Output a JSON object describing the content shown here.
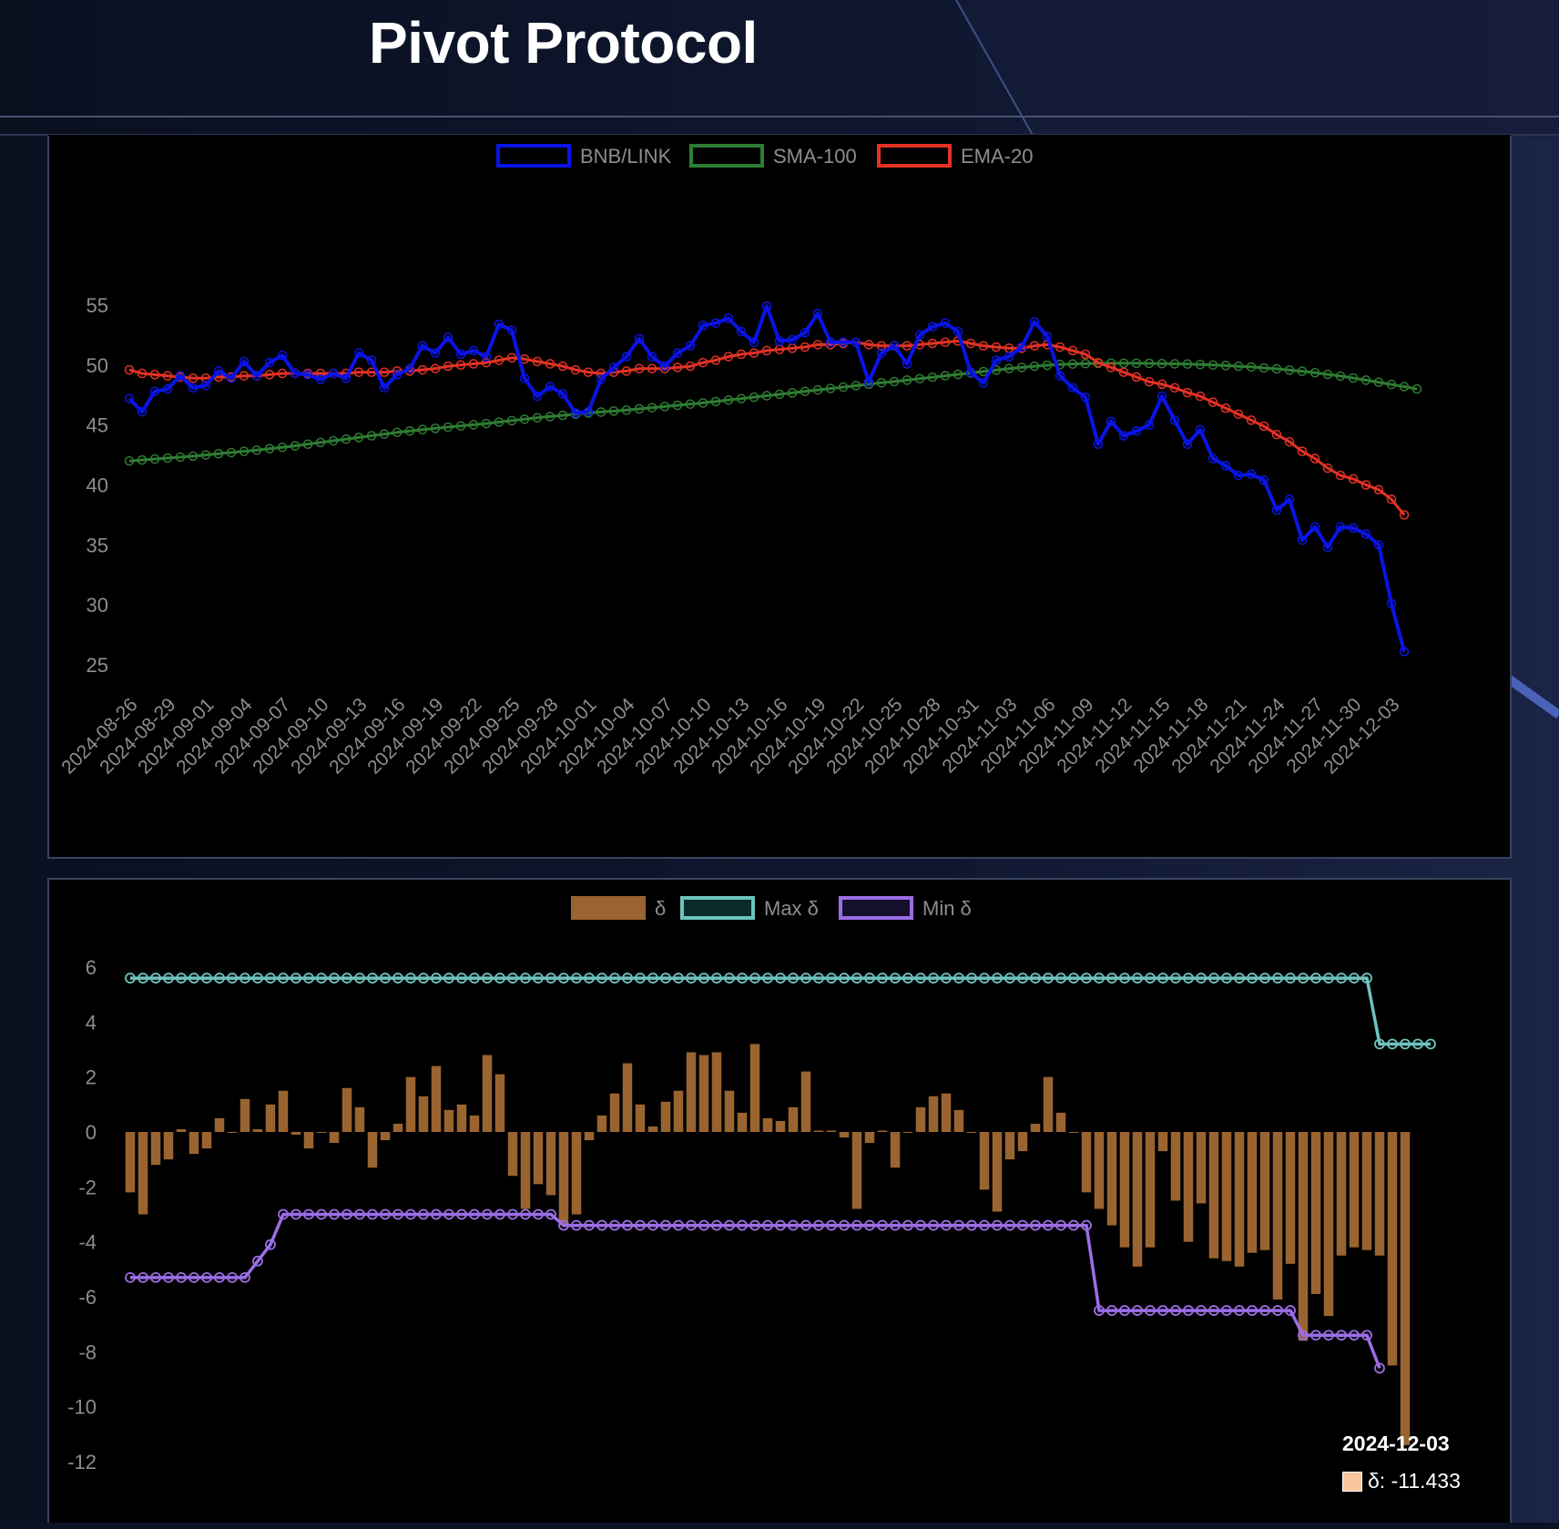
{
  "page": {
    "title": "Pivot Protocol"
  },
  "colors": {
    "price": "#0a14e6",
    "sma": "#2e7d32",
    "ema": "#e53224",
    "delta": "#9a6430",
    "max": "#6ec3bd",
    "min": "#9b6ee6",
    "axis_text": "#8d8d8d"
  },
  "tooltip": {
    "date": "2024-12-03",
    "label": "δ: -11.433"
  },
  "chart_data": [
    {
      "type": "line",
      "legend": [
        "BNB/LINK",
        "SMA-100",
        "EMA-20"
      ],
      "legend_position": "top",
      "ylim": [
        25,
        55
      ],
      "yticks": [
        55,
        50,
        45,
        40,
        35,
        30,
        25
      ],
      "xtick_labels": [
        "2024-08-26",
        "2024-08-29",
        "2024-09-01",
        "2024-09-04",
        "2024-09-07",
        "2024-09-10",
        "2024-09-13",
        "2024-09-16",
        "2024-09-19",
        "2024-09-22",
        "2024-09-25",
        "2024-09-28",
        "2024-10-01",
        "2024-10-04",
        "2024-10-07",
        "2024-10-10",
        "2024-10-13",
        "2024-10-16",
        "2024-10-19",
        "2024-10-22",
        "2024-10-25",
        "2024-10-28",
        "2024-10-31",
        "2024-11-03",
        "2024-11-06",
        "2024-11-09",
        "2024-11-12",
        "2024-11-15",
        "2024-11-18",
        "2024-11-21",
        "2024-11-24",
        "2024-11-27",
        "2024-11-30",
        "2024-12-03"
      ],
      "x_start": "2024-08-26",
      "x_end": "2024-12-03",
      "series": [
        {
          "name": "BNB/LINK",
          "values": [
            47.2,
            46.1,
            47.8,
            48.0,
            49.1,
            48.1,
            48.3,
            49.5,
            48.9,
            50.3,
            49.1,
            50.2,
            50.8,
            49.3,
            49.2,
            48.8,
            49.3,
            48.9,
            51.0,
            50.4,
            48.1,
            49.2,
            49.7,
            51.6,
            51.0,
            52.3,
            50.9,
            51.2,
            50.7,
            53.4,
            52.9,
            48.9,
            47.4,
            48.2,
            47.6,
            46.0,
            46.1,
            48.8,
            49.8,
            50.7,
            52.2,
            50.7,
            49.9,
            51.0,
            51.6,
            53.3,
            53.5,
            53.9,
            52.8,
            51.9,
            54.9,
            52.0,
            52.1,
            52.7,
            54.3,
            51.9,
            51.9,
            51.9,
            48.6,
            51.0,
            51.6,
            50.1,
            52.5,
            53.2,
            53.5,
            52.8,
            49.4,
            48.5,
            50.4,
            50.7,
            51.5,
            53.6,
            52.4,
            49.1,
            48.1,
            47.3,
            43.4,
            45.3,
            44.1,
            44.5,
            45.0,
            47.4,
            45.4,
            43.4,
            44.6,
            42.2,
            41.6,
            40.8,
            40.9,
            40.4,
            37.9,
            38.8,
            35.4,
            36.5,
            34.8,
            36.5,
            36.4,
            35.9,
            35.0,
            30.1,
            26.1
          ]
        },
        {
          "name": "SMA-100",
          "values": [
            42.0,
            42.08,
            42.16,
            42.24,
            42.32,
            42.4,
            42.5,
            42.6,
            42.7,
            42.8,
            42.9,
            43.02,
            43.14,
            43.26,
            43.4,
            43.54,
            43.68,
            43.82,
            43.96,
            44.1,
            44.24,
            44.38,
            44.5,
            44.62,
            44.72,
            44.82,
            44.92,
            45.02,
            45.12,
            45.24,
            45.36,
            45.48,
            45.6,
            45.7,
            45.8,
            45.9,
            46.0,
            46.08,
            46.16,
            46.24,
            46.34,
            46.44,
            46.54,
            46.64,
            46.74,
            46.84,
            46.96,
            47.08,
            47.2,
            47.32,
            47.44,
            47.56,
            47.68,
            47.8,
            47.92,
            48.04,
            48.16,
            48.28,
            48.4,
            48.52,
            48.62,
            48.74,
            48.86,
            48.98,
            49.1,
            49.22,
            49.34,
            49.46,
            49.58,
            49.7,
            49.8,
            49.9,
            49.98,
            50.04,
            50.08,
            50.12,
            50.14,
            50.15,
            50.15,
            50.15,
            50.14,
            50.12,
            50.1,
            50.08,
            50.04,
            50.0,
            49.96,
            49.9,
            49.84,
            49.76,
            49.68,
            49.58,
            49.48,
            49.36,
            49.22,
            49.08,
            48.92,
            48.74,
            48.56,
            48.38,
            48.2,
            48.0
          ]
        },
        {
          "name": "EMA-20",
          "values": [
            49.6,
            49.3,
            49.2,
            49.1,
            49.0,
            48.9,
            48.9,
            49.0,
            49.0,
            49.1,
            49.1,
            49.2,
            49.3,
            49.3,
            49.3,
            49.3,
            49.3,
            49.3,
            49.4,
            49.4,
            49.4,
            49.5,
            49.5,
            49.6,
            49.7,
            49.9,
            50.0,
            50.1,
            50.2,
            50.4,
            50.6,
            50.5,
            50.3,
            50.1,
            49.9,
            49.6,
            49.4,
            49.3,
            49.4,
            49.5,
            49.7,
            49.7,
            49.7,
            49.8,
            49.9,
            50.2,
            50.4,
            50.7,
            50.9,
            51.0,
            51.2,
            51.3,
            51.4,
            51.5,
            51.7,
            51.7,
            51.8,
            51.9,
            51.7,
            51.6,
            51.6,
            51.6,
            51.7,
            51.8,
            51.9,
            52.0,
            51.8,
            51.6,
            51.5,
            51.4,
            51.4,
            51.6,
            51.7,
            51.5,
            51.2,
            50.9,
            50.2,
            49.8,
            49.4,
            49.0,
            48.6,
            48.4,
            48.1,
            47.7,
            47.4,
            46.9,
            46.4,
            45.9,
            45.4,
            44.9,
            44.2,
            43.6,
            42.8,
            42.2,
            41.4,
            40.8,
            40.5,
            40.0,
            39.6,
            38.8,
            37.5
          ]
        }
      ]
    },
    {
      "type": "bar",
      "legend": [
        "δ",
        "Max δ",
        "Min δ"
      ],
      "legend_position": "top",
      "ylim": [
        -12,
        6
      ],
      "yticks": [
        6,
        4,
        2,
        0,
        -2,
        -4,
        -6,
        -8,
        -10,
        -12
      ],
      "series": [
        {
          "name": "δ",
          "values": [
            -2.2,
            -3.0,
            -1.2,
            -1.0,
            0.1,
            -0.8,
            -0.6,
            0.5,
            0.0,
            1.2,
            0.1,
            1.0,
            1.5,
            -0.1,
            -0.6,
            0.0,
            -0.4,
            1.6,
            0.9,
            -1.3,
            -0.3,
            0.3,
            2.0,
            1.3,
            2.4,
            0.8,
            1.0,
            0.6,
            2.8,
            2.1,
            -1.6,
            -2.8,
            -1.9,
            -2.3,
            -3.4,
            -3.0,
            -0.3,
            0.6,
            1.4,
            2.5,
            1.0,
            0.2,
            1.1,
            1.5,
            2.9,
            2.8,
            2.9,
            1.5,
            0.7,
            3.2,
            0.5,
            0.4,
            0.9,
            2.2,
            0.05,
            0.05,
            -0.2,
            -2.8,
            -0.4,
            0.05,
            -1.3,
            0.0,
            0.9,
            1.3,
            1.4,
            0.8,
            0.0,
            -2.1,
            -2.9,
            -1.0,
            -0.7,
            0.3,
            2.0,
            0.7,
            0.0,
            -2.2,
            -2.8,
            -3.4,
            -4.2,
            -4.9,
            -4.2,
            -0.7,
            -2.5,
            -4.0,
            -2.6,
            -4.6,
            -4.7,
            -4.9,
            -4.4,
            -4.3,
            -6.1,
            -4.8,
            -7.6,
            -5.9,
            -6.7,
            -4.5,
            -4.2,
            -4.3,
            -4.5,
            -8.5,
            -11.4
          ]
        },
        {
          "name": "Max δ",
          "values": [
            5.6,
            5.6,
            5.6,
            5.6,
            5.6,
            5.6,
            5.6,
            5.6,
            5.6,
            5.6,
            5.6,
            5.6,
            5.6,
            5.6,
            5.6,
            5.6,
            5.6,
            5.6,
            5.6,
            5.6,
            5.6,
            5.6,
            5.6,
            5.6,
            5.6,
            5.6,
            5.6,
            5.6,
            5.6,
            5.6,
            5.6,
            5.6,
            5.6,
            5.6,
            5.6,
            5.6,
            5.6,
            5.6,
            5.6,
            5.6,
            5.6,
            5.6,
            5.6,
            5.6,
            5.6,
            5.6,
            5.6,
            5.6,
            5.6,
            5.6,
            5.6,
            5.6,
            5.6,
            5.6,
            5.6,
            5.6,
            5.6,
            5.6,
            5.6,
            5.6,
            5.6,
            5.6,
            5.6,
            5.6,
            5.6,
            5.6,
            5.6,
            5.6,
            5.6,
            5.6,
            5.6,
            5.6,
            5.6,
            5.6,
            5.6,
            5.6,
            5.6,
            5.6,
            5.6,
            5.6,
            5.6,
            5.6,
            5.6,
            5.6,
            5.6,
            5.6,
            5.6,
            5.6,
            5.6,
            5.6,
            5.6,
            5.6,
            5.6,
            5.6,
            5.6,
            5.6,
            5.6,
            5.6,
            3.2,
            3.2,
            3.2,
            3.2,
            3.2
          ]
        },
        {
          "name": "Min δ",
          "values": [
            -5.3,
            -5.3,
            -5.3,
            -5.3,
            -5.3,
            -5.3,
            -5.3,
            -5.3,
            -5.3,
            -5.3,
            -4.7,
            -4.1,
            -3.0,
            -3.0,
            -3.0,
            -3.0,
            -3.0,
            -3.0,
            -3.0,
            -3.0,
            -3.0,
            -3.0,
            -3.0,
            -3.0,
            -3.0,
            -3.0,
            -3.0,
            -3.0,
            -3.0,
            -3.0,
            -3.0,
            -3.0,
            -3.0,
            -3.0,
            -3.4,
            -3.4,
            -3.4,
            -3.4,
            -3.4,
            -3.4,
            -3.4,
            -3.4,
            -3.4,
            -3.4,
            -3.4,
            -3.4,
            -3.4,
            -3.4,
            -3.4,
            -3.4,
            -3.4,
            -3.4,
            -3.4,
            -3.4,
            -3.4,
            -3.4,
            -3.4,
            -3.4,
            -3.4,
            -3.4,
            -3.4,
            -3.4,
            -3.4,
            -3.4,
            -3.4,
            -3.4,
            -3.4,
            -3.4,
            -3.4,
            -3.4,
            -3.4,
            -3.4,
            -3.4,
            -3.4,
            -3.4,
            -3.4,
            -6.5,
            -6.5,
            -6.5,
            -6.5,
            -6.5,
            -6.5,
            -6.5,
            -6.5,
            -6.5,
            -6.5,
            -6.5,
            -6.5,
            -6.5,
            -6.5,
            -6.5,
            -6.5,
            -7.4,
            -7.4,
            -7.4,
            -7.4,
            -7.4,
            -7.4,
            -8.6
          ]
        }
      ]
    }
  ]
}
